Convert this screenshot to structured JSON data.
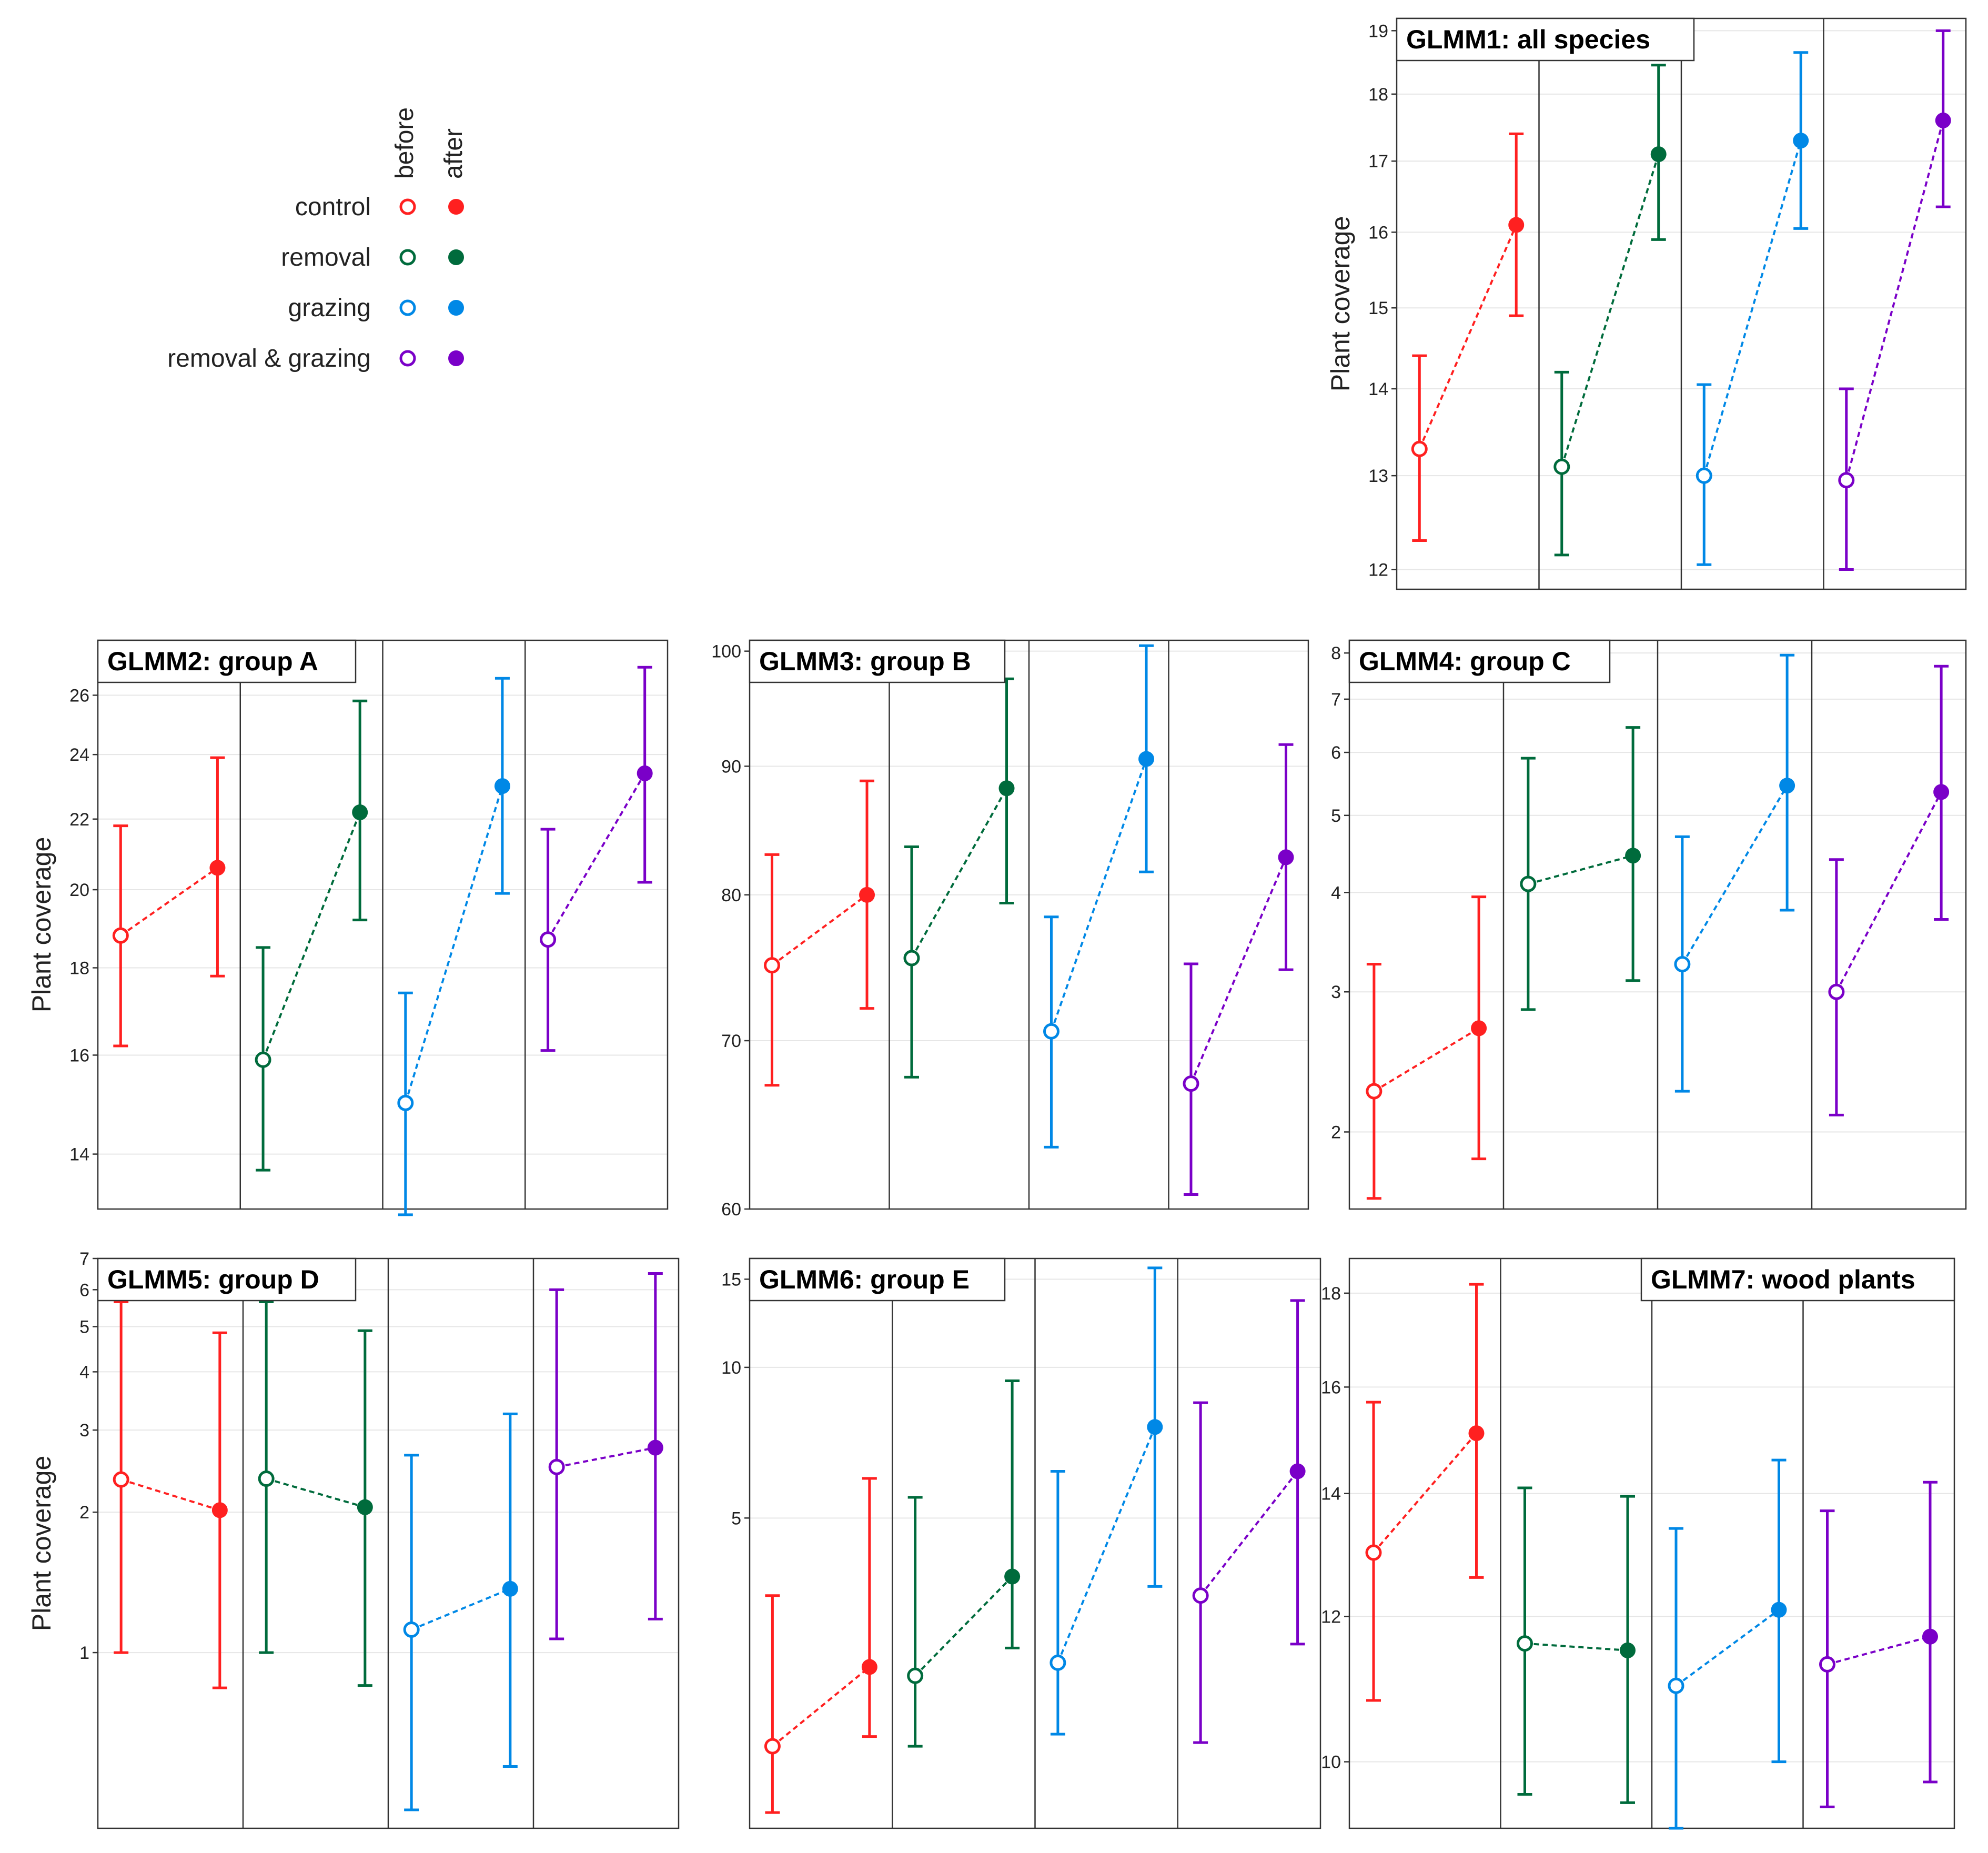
{
  "legend": {
    "column_labels": [
      "before",
      "after"
    ],
    "treatments": [
      "control",
      "removal",
      "grazing",
      "removal & grazing"
    ]
  },
  "colors": {
    "control": "#ff2020",
    "removal": "#006b3c",
    "grazing": "#0088e6",
    "removal & grazing": "#7a00c8"
  },
  "chart_data": [
    {
      "type": "line",
      "title": "GLMM1: all species",
      "ylabel": "Plant coverage",
      "yscale": "log",
      "ylim": [
        11.8,
        19.2
      ],
      "yticks": [
        12,
        13,
        14,
        15,
        16,
        17,
        18,
        19
      ],
      "categories": [
        "before",
        "after"
      ],
      "series": [
        {
          "name": "control",
          "values": [
            13.3,
            16.1
          ],
          "lower": [
            12.3,
            14.9
          ],
          "upper": [
            14.4,
            17.4
          ]
        },
        {
          "name": "removal",
          "values": [
            13.1,
            17.1
          ],
          "lower": [
            12.15,
            15.9
          ],
          "upper": [
            14.2,
            18.45
          ]
        },
        {
          "name": "grazing",
          "values": [
            13.0,
            17.3
          ],
          "lower": [
            12.05,
            16.05
          ],
          "upper": [
            14.05,
            18.65
          ]
        },
        {
          "name": "removal & grazing",
          "values": [
            12.95,
            17.6
          ],
          "lower": [
            12.0,
            16.35
          ],
          "upper": [
            14.0,
            19.0
          ]
        }
      ]
    },
    {
      "type": "line",
      "title": "GLMM2: group A",
      "ylabel": "Plant coverage",
      "yscale": "log",
      "ylim": [
        13.0,
        28.0
      ],
      "yticks": [
        14,
        16,
        18,
        20,
        22,
        24,
        26
      ],
      "categories": [
        "before",
        "after"
      ],
      "series": [
        {
          "name": "control",
          "values": [
            18.8,
            20.6
          ],
          "lower": [
            16.2,
            17.8
          ],
          "upper": [
            21.8,
            23.9
          ]
        },
        {
          "name": "removal",
          "values": [
            15.9,
            22.2
          ],
          "lower": [
            13.7,
            19.2
          ],
          "upper": [
            18.5,
            25.8
          ]
        },
        {
          "name": "grazing",
          "values": [
            15.0,
            23.0
          ],
          "lower": [
            12.9,
            19.9
          ],
          "upper": [
            17.4,
            26.6
          ]
        },
        {
          "name": "removal & grazing",
          "values": [
            18.7,
            23.4
          ],
          "lower": [
            16.1,
            20.2
          ],
          "upper": [
            21.7,
            27.0
          ]
        }
      ]
    },
    {
      "type": "line",
      "title": "GLMM3: group B",
      "ylabel": "",
      "yscale": "log",
      "ylim": [
        60,
        101
      ],
      "yticks": [
        60,
        70,
        80,
        90,
        100
      ],
      "categories": [
        "before",
        "after"
      ],
      "series": [
        {
          "name": "control",
          "values": [
            75,
            80
          ],
          "lower": [
            67.2,
            72.1
          ],
          "upper": [
            83.0,
            88.8
          ]
        },
        {
          "name": "removal",
          "values": [
            75.5,
            88.2
          ],
          "lower": [
            67.7,
            79.4
          ],
          "upper": [
            83.6,
            97.5
          ]
        },
        {
          "name": "grazing",
          "values": [
            70.6,
            90.6
          ],
          "lower": [
            63.5,
            81.7
          ],
          "upper": [
            78.4,
            100.5
          ]
        },
        {
          "name": "removal & grazing",
          "values": [
            67.3,
            82.8
          ],
          "lower": [
            60.8,
            74.7
          ],
          "upper": [
            75.1,
            91.8
          ]
        }
      ]
    },
    {
      "type": "line",
      "title": "GLMM4: group C",
      "ylabel": "",
      "yscale": "log",
      "ylim": [
        1.6,
        8.3
      ],
      "yticks": [
        2,
        3,
        4,
        5,
        6,
        7,
        8
      ],
      "categories": [
        "before",
        "after"
      ],
      "series": [
        {
          "name": "control",
          "values": [
            2.25,
            2.7
          ],
          "lower": [
            1.65,
            1.85
          ],
          "upper": [
            3.25,
            3.95
          ]
        },
        {
          "name": "removal",
          "values": [
            4.1,
            4.45
          ],
          "lower": [
            2.85,
            3.1
          ],
          "upper": [
            5.9,
            6.45
          ]
        },
        {
          "name": "grazing",
          "values": [
            3.25,
            5.45
          ],
          "lower": [
            2.25,
            3.8
          ],
          "upper": [
            4.7,
            7.95
          ]
        },
        {
          "name": "removal & grazing",
          "values": [
            3.0,
            5.35
          ],
          "lower": [
            2.1,
            3.7
          ],
          "upper": [
            4.4,
            7.7
          ]
        }
      ]
    },
    {
      "type": "line",
      "title": "GLMM5: group D",
      "ylabel": "Plant coverage",
      "yscale": "log",
      "ylim": [
        0.42,
        7.0
      ],
      "yticks": [
        1,
        2,
        3,
        4,
        5,
        6,
        7
      ],
      "categories": [
        "before",
        "after"
      ],
      "series": [
        {
          "name": "control",
          "values": [
            2.35,
            2.02
          ],
          "lower": [
            1.0,
            0.84
          ],
          "upper": [
            5.65,
            4.85
          ]
        },
        {
          "name": "removal",
          "values": [
            2.36,
            2.05
          ],
          "lower": [
            1.0,
            0.85
          ],
          "upper": [
            5.65,
            4.9
          ]
        },
        {
          "name": "grazing",
          "values": [
            1.12,
            1.37
          ],
          "lower": [
            0.46,
            0.57
          ],
          "upper": [
            2.65,
            3.25
          ]
        },
        {
          "name": "removal & grazing",
          "values": [
            2.5,
            2.75
          ],
          "lower": [
            1.07,
            1.18
          ],
          "upper": [
            6.0,
            6.5
          ]
        }
      ]
    },
    {
      "type": "line",
      "title": "GLMM6: group E",
      "ylabel": "",
      "yscale": "log",
      "ylim": [
        1.2,
        16.5
      ],
      "yticks": [
        5,
        10,
        15
      ],
      "categories": [
        "before",
        "after"
      ],
      "series": [
        {
          "name": "control",
          "values": [
            1.75,
            2.52
          ],
          "lower": [
            1.29,
            1.83
          ],
          "upper": [
            3.5,
            6.0
          ]
        },
        {
          "name": "removal",
          "values": [
            2.42,
            3.82
          ],
          "lower": [
            1.75,
            2.75
          ],
          "upper": [
            5.5,
            9.4
          ]
        },
        {
          "name": "grazing",
          "values": [
            2.57,
            7.6
          ],
          "lower": [
            1.85,
            3.65
          ],
          "upper": [
            6.2,
            15.8
          ]
        },
        {
          "name": "removal & grazing",
          "values": [
            3.5,
            6.2
          ],
          "lower": [
            1.78,
            2.8
          ],
          "upper": [
            8.5,
            13.6
          ]
        }
      ]
    },
    {
      "type": "line",
      "title": "GLMM7: wood plants",
      "ylabel": "",
      "yscale": "log",
      "ylim": [
        9.2,
        18.8
      ],
      "yticks": [
        10,
        12,
        14,
        16,
        18
      ],
      "categories": [
        "before",
        "after"
      ],
      "series": [
        {
          "name": "control",
          "values": [
            13.0,
            15.1
          ],
          "lower": [
            10.8,
            12.6
          ],
          "upper": [
            15.7,
            18.2
          ]
        },
        {
          "name": "removal",
          "values": [
            11.6,
            11.5
          ],
          "lower": [
            9.6,
            9.5
          ],
          "upper": [
            14.1,
            13.95
          ]
        },
        {
          "name": "grazing",
          "values": [
            11.0,
            12.1
          ],
          "lower": [
            9.2,
            10.0
          ],
          "upper": [
            13.4,
            14.6
          ]
        },
        {
          "name": "removal & grazing",
          "values": [
            11.3,
            11.7
          ],
          "lower": [
            9.45,
            9.75
          ],
          "upper": [
            13.7,
            14.2
          ]
        }
      ]
    }
  ]
}
